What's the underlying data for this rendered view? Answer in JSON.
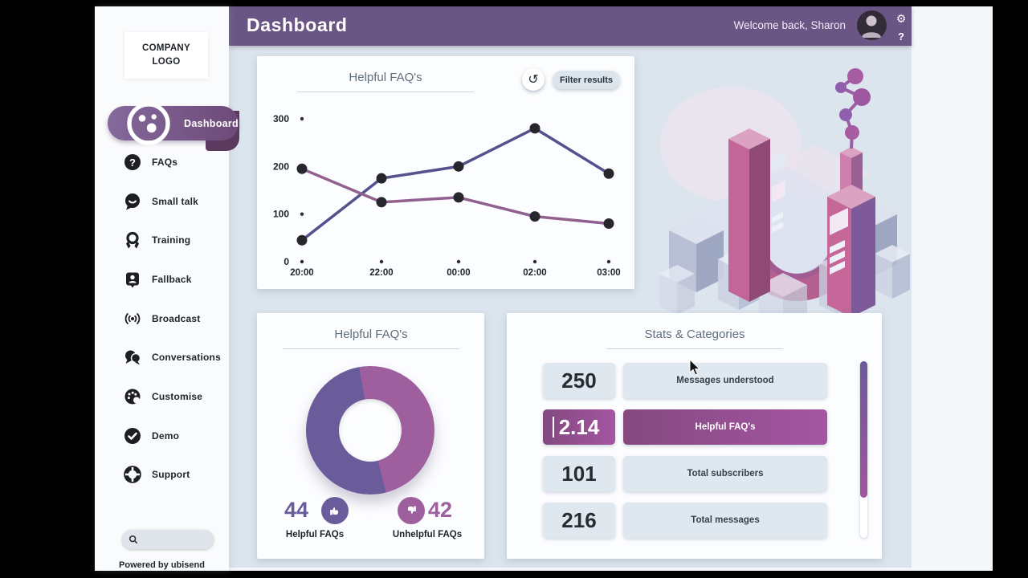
{
  "header": {
    "title": "Dashboard",
    "welcome_text": "Welcome back, Sharon",
    "settings_glyph": "⚙",
    "help_label": "?"
  },
  "sidebar": {
    "logo_text": "COMPANY LOGO",
    "items": [
      {
        "label": "Dashboard",
        "active": true
      },
      {
        "label": "FAQs",
        "active": false
      },
      {
        "label": "Small talk",
        "active": false
      },
      {
        "label": "Training",
        "active": false
      },
      {
        "label": "Fallback",
        "active": false
      },
      {
        "label": "Broadcast",
        "active": false
      },
      {
        "label": "Conversations",
        "active": false
      },
      {
        "label": "Customise",
        "active": false
      },
      {
        "label": "Demo",
        "active": false
      },
      {
        "label": "Support",
        "active": false
      }
    ],
    "search": {
      "placeholder": "",
      "value": ""
    },
    "footer_text": "Powered by ubisend"
  },
  "line_chart_card": {
    "title": "Helpful FAQ's",
    "refresh_glyph": "↺",
    "filter_button_label": "Filter results"
  },
  "donut_card": {
    "title": "Helpful FAQ's",
    "legend": [
      {
        "value": "44",
        "label": "Helpful FAQs",
        "color": "#6a5b9a",
        "icon": "thumbs-up-icon"
      },
      {
        "value": "42",
        "label": "Unhelpful FAQs",
        "color": "#9d5f9e",
        "icon": "thumbs-down-icon"
      }
    ]
  },
  "stats_card": {
    "title": "Stats & Categories",
    "rows": [
      {
        "value": "250",
        "label": "Messages understood",
        "highlighted": false
      },
      {
        "value": "2.14",
        "label": "Helpful FAQ's",
        "highlighted": true
      },
      {
        "value": "101",
        "label": "Total subscribers",
        "highlighted": false
      },
      {
        "value": "216",
        "label": "Total messages",
        "highlighted": false
      }
    ]
  },
  "chart_data": [
    {
      "type": "line",
      "title": "Helpful FAQ's",
      "x": [
        "20:00",
        "22:00",
        "00:00",
        "02:00",
        "03:00"
      ],
      "series": [
        {
          "name": "series-a",
          "color": "#55518e",
          "values": [
            45,
            175,
            200,
            280,
            185
          ]
        },
        {
          "name": "series-b",
          "color": "#92608e",
          "values": [
            195,
            125,
            135,
            95,
            80
          ]
        }
      ],
      "ylim": [
        0,
        300
      ],
      "yticks": [
        0,
        100,
        200,
        300
      ],
      "grid": false,
      "legend_position": "none",
      "point_color": "#26262c"
    },
    {
      "type": "pie",
      "variant": "donut",
      "title": "Helpful FAQ's",
      "start_angle_deg": -10,
      "slices": [
        {
          "label": "Unhelpful FAQs",
          "value": 42,
          "color": "#9d5f9e"
        },
        {
          "label": "Helpful FAQs",
          "value": 44,
          "color": "#6a5b9a"
        }
      ]
    }
  ]
}
